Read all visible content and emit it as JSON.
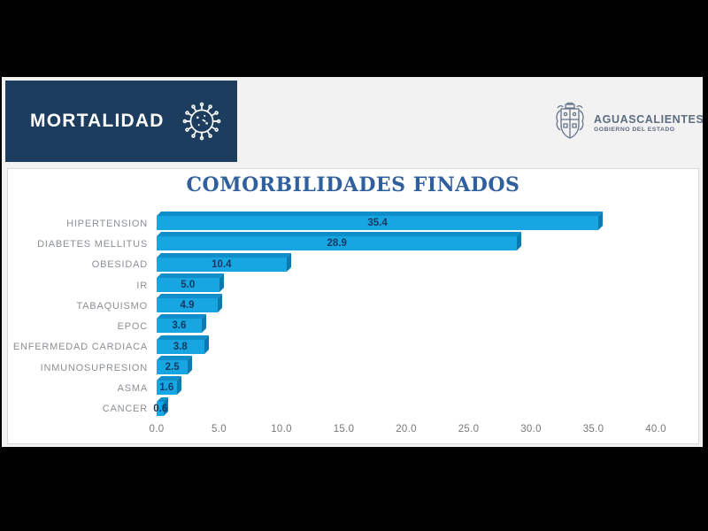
{
  "slide": {
    "banner": {
      "title": "MORTALIDAD"
    },
    "logo": {
      "name": "AGUASCALIENTES",
      "subtitle": "GOBIERNO DEL ESTADO"
    }
  },
  "chart_data": {
    "type": "bar",
    "orientation": "horizontal",
    "title": "COMORBILIDADES FINADOS",
    "categories": [
      "HIPERTENSION",
      "DIABETES MELLITUS",
      "OBESIDAD",
      "IR",
      "TABAQUISMO",
      "EPOC",
      "ENFERMEDAD CARDIACA",
      "INMUNOSUPRESION",
      "ASMA",
      "CANCER"
    ],
    "values": [
      35.4,
      28.9,
      10.4,
      5.0,
      4.9,
      3.6,
      3.8,
      2.5,
      1.6,
      0.6
    ],
    "value_labels": [
      "35.4",
      "28.9",
      "10.4",
      "5.0",
      "4.9",
      "3.6",
      "3.8",
      "2.5",
      "1.6",
      "0.6"
    ],
    "x_ticks": [
      "0.0",
      "5.0",
      "10.0",
      "15.0",
      "20.0",
      "25.0",
      "30.0",
      "35.0",
      "40.0"
    ],
    "xlabel": "",
    "ylabel": "",
    "xlim": [
      0,
      40
    ],
    "grid": false,
    "legend": false,
    "bar_style": "3d"
  },
  "colors": {
    "backdrop": "#000000",
    "slide_bg": "#f2f2f3",
    "banner_bg": "#1c3d5d",
    "banner_text": "#ffffff",
    "title_text": "#2f5f9d",
    "bar_face": "#18a6e2",
    "bar_top": "#0f8ec9",
    "bar_side": "#0b7ab0",
    "value_text": "#14375f",
    "category_text": "#8b9095",
    "tick_text": "#77797b",
    "panel_bg": "#ffffff",
    "panel_border": "#d9d9d9",
    "logo_text": "#5d6c80"
  }
}
